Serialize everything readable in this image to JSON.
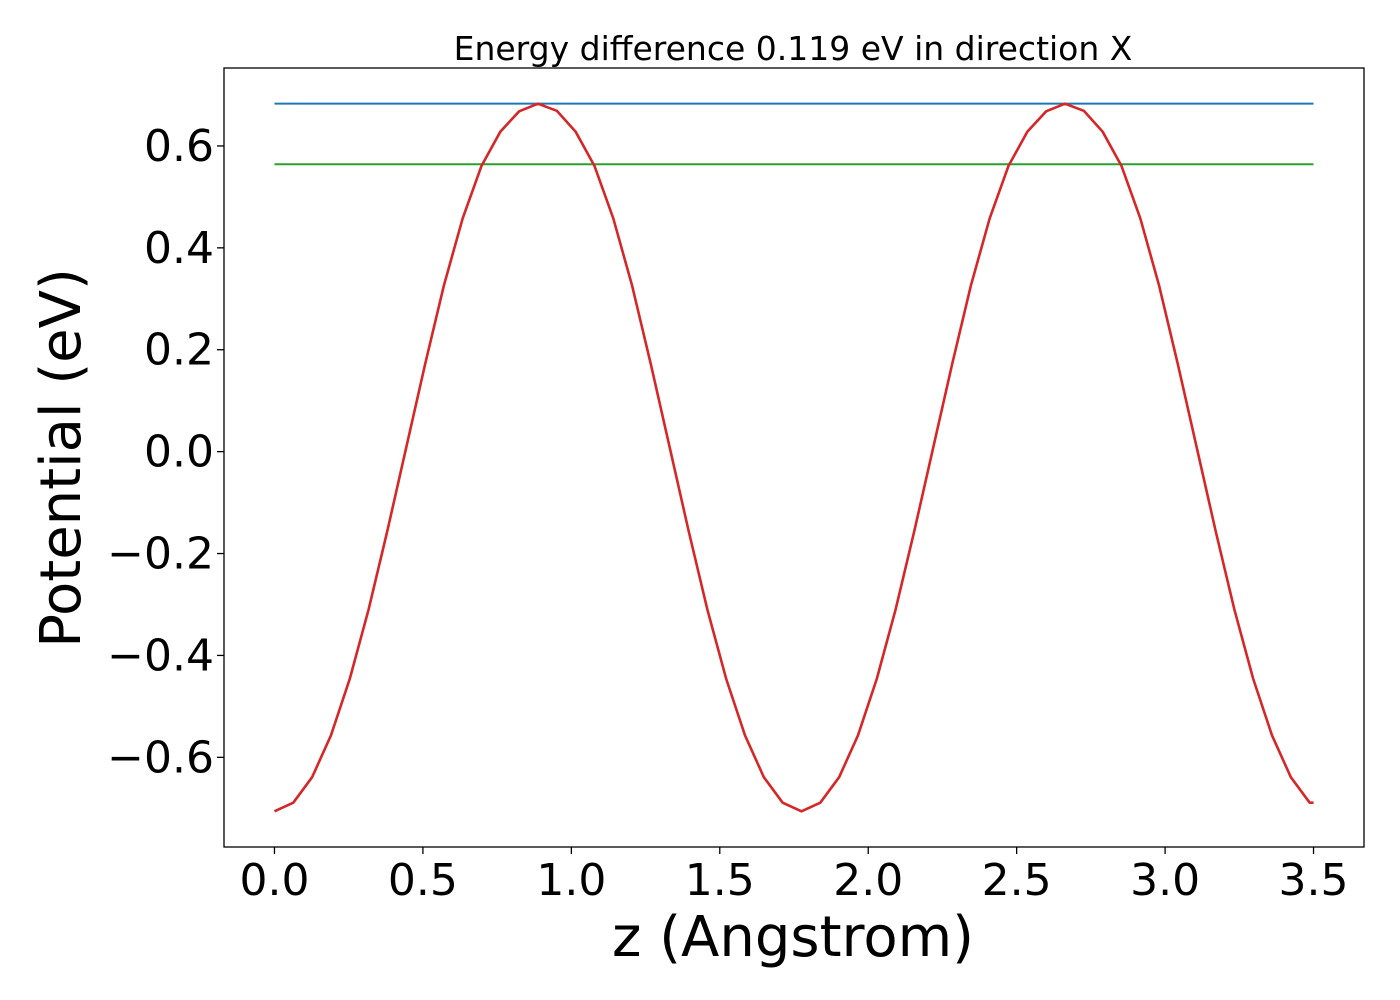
{
  "chart_data": {
    "type": "line",
    "title": "Energy difference 0.119 eV in direction X",
    "xlabel": "z (Angstrom)",
    "ylabel": "Potential (eV)",
    "xlim": [
      -0.17,
      3.67
    ],
    "ylim": [
      -0.776,
      0.753
    ],
    "xticks": [
      0.0,
      0.5,
      1.0,
      1.5,
      2.0,
      2.5,
      3.0,
      3.5
    ],
    "xtick_labels": [
      "0.0",
      "0.5",
      "1.0",
      "1.5",
      "2.0",
      "2.5",
      "3.0",
      "3.5"
    ],
    "yticks": [
      -0.6,
      -0.4,
      -0.2,
      0.0,
      0.2,
      0.4,
      0.6
    ],
    "ytick_labels": [
      "−0.6",
      "−0.4",
      "−0.2",
      "0.0",
      "0.2",
      "0.4",
      "0.6"
    ],
    "grid": false,
    "series": [
      {
        "color": "#d62728",
        "x": [
          0.0,
          0.0634,
          0.1268,
          0.1902,
          0.2536,
          0.317,
          0.3804,
          0.4438,
          0.5072,
          0.5706,
          0.634,
          0.6974,
          0.7608,
          0.8242,
          0.8876,
          0.951,
          1.0144,
          1.0778,
          1.1412,
          1.2046,
          1.268,
          1.3314,
          1.3948,
          1.4582,
          1.5216,
          1.585,
          1.6484,
          1.7118,
          1.7752,
          1.8386,
          1.902,
          1.9654,
          2.0288,
          2.0922,
          2.1556,
          2.219,
          2.2824,
          2.3458,
          2.4092,
          2.4726,
          2.536,
          2.5994,
          2.6628,
          2.7262,
          2.7896,
          2.853,
          2.9164,
          2.9798,
          3.0432,
          3.1066,
          3.17,
          3.2334,
          3.2968,
          3.3602,
          3.4236,
          3.487,
          3.5
        ],
        "y": [
          -0.706,
          -0.689,
          -0.639,
          -0.557,
          -0.446,
          -0.31,
          -0.155,
          0.008,
          0.171,
          0.326,
          0.458,
          0.561,
          0.628,
          0.668,
          0.683,
          0.669,
          0.628,
          0.561,
          0.458,
          0.326,
          0.171,
          0.008,
          -0.155,
          -0.31,
          -0.446,
          -0.557,
          -0.639,
          -0.689,
          -0.706,
          -0.689,
          -0.639,
          -0.557,
          -0.446,
          -0.31,
          -0.155,
          0.008,
          0.171,
          0.326,
          0.458,
          0.561,
          0.628,
          0.668,
          0.683,
          0.669,
          0.628,
          0.561,
          0.458,
          0.326,
          0.171,
          0.008,
          -0.155,
          -0.31,
          -0.446,
          -0.557,
          -0.639,
          -0.689,
          -0.689
        ]
      },
      {
        "color": "#1f77b4",
        "x": [
          0.0,
          3.5
        ],
        "y": [
          0.683,
          0.683
        ]
      },
      {
        "color": "#2ca02c",
        "x": [
          0.0,
          3.5
        ],
        "y": [
          0.564,
          0.564
        ]
      }
    ]
  }
}
